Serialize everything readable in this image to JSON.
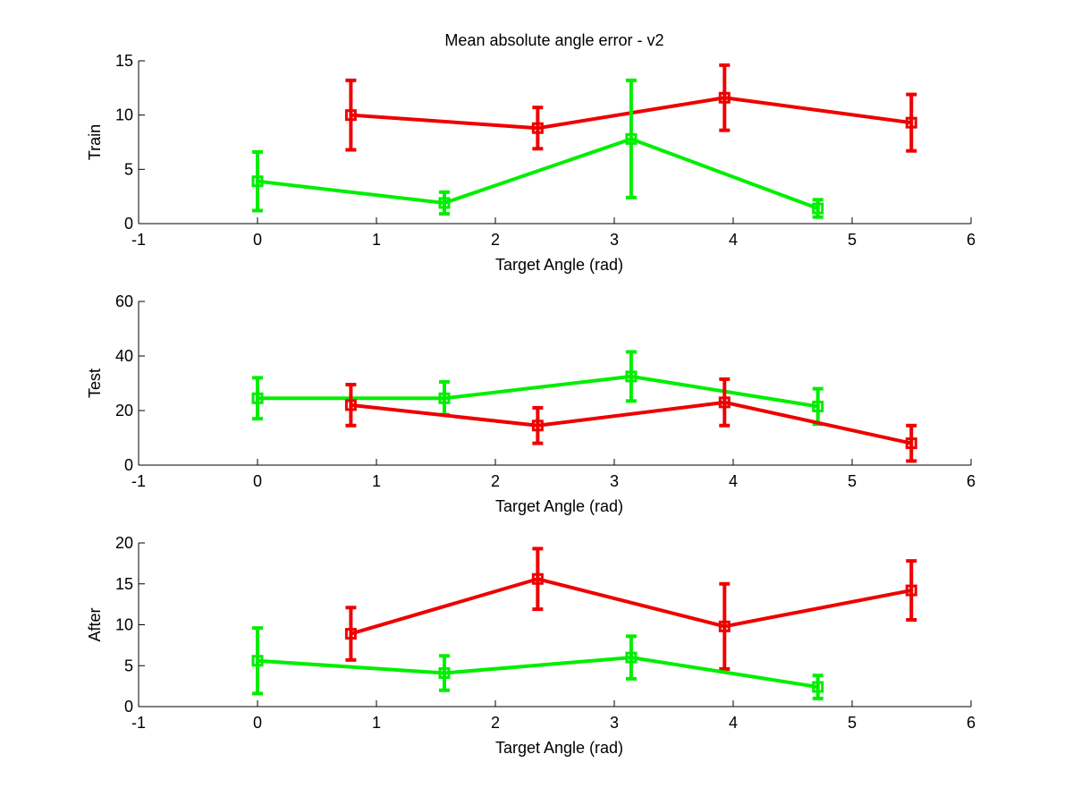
{
  "figure": {
    "title": "Mean absolute angle error - v2"
  },
  "colors": {
    "series_red": "#ee0000",
    "series_green": "#00ee00",
    "axis": "#000000",
    "background": "#ffffff"
  },
  "chart_data": [
    {
      "type": "line",
      "title": "Mean absolute angle error - v2",
      "xlabel": "Target Angle (rad)",
      "ylabel": "Train",
      "xlim": [
        -1,
        6
      ],
      "ylim": [
        0,
        15
      ],
      "xticks": [
        -1,
        0,
        1,
        2,
        3,
        4,
        5,
        6
      ],
      "yticks": [
        0,
        5,
        10,
        15
      ],
      "error_bars": true,
      "grid": false,
      "series": [
        {
          "color": "#ee0000",
          "marker": "square",
          "x": [
            0.785,
            2.356,
            3.927,
            5.498
          ],
          "y": [
            10.0,
            8.8,
            11.6,
            9.3
          ],
          "err": [
            3.2,
            1.9,
            3.0,
            2.6
          ]
        },
        {
          "color": "#00ee00",
          "marker": "square",
          "x": [
            0.0,
            1.571,
            3.142,
            4.712
          ],
          "y": [
            3.9,
            1.9,
            7.8,
            1.4
          ],
          "err": [
            2.7,
            1.0,
            5.4,
            0.8
          ]
        }
      ]
    },
    {
      "type": "line",
      "title": "",
      "xlabel": "Target Angle (rad)",
      "ylabel": "Test",
      "xlim": [
        -1,
        6
      ],
      "ylim": [
        0,
        60
      ],
      "xticks": [
        -1,
        0,
        1,
        2,
        3,
        4,
        5,
        6
      ],
      "yticks": [
        0,
        20,
        40,
        60
      ],
      "error_bars": true,
      "grid": false,
      "series": [
        {
          "color": "#00ee00",
          "marker": "square",
          "x": [
            0.0,
            1.571,
            3.142,
            4.712
          ],
          "y": [
            24.5,
            24.5,
            32.5,
            21.5
          ],
          "err": [
            7.5,
            6.0,
            9.0,
            6.5
          ]
        },
        {
          "color": "#ee0000",
          "marker": "square",
          "x": [
            0.785,
            2.356,
            3.927,
            5.498
          ],
          "y": [
            22.0,
            14.5,
            23.0,
            8.0
          ],
          "err": [
            7.5,
            6.5,
            8.5,
            6.5
          ]
        }
      ]
    },
    {
      "type": "line",
      "title": "",
      "xlabel": "Target Angle (rad)",
      "ylabel": "After",
      "xlim": [
        -1,
        6
      ],
      "ylim": [
        0,
        20
      ],
      "xticks": [
        -1,
        0,
        1,
        2,
        3,
        4,
        5,
        6
      ],
      "yticks": [
        0,
        5,
        10,
        15,
        20
      ],
      "error_bars": true,
      "grid": false,
      "series": [
        {
          "color": "#ee0000",
          "marker": "square",
          "x": [
            0.785,
            2.356,
            3.927,
            5.498
          ],
          "y": [
            8.9,
            15.6,
            9.8,
            14.2
          ],
          "err": [
            3.2,
            3.7,
            5.2,
            3.6
          ]
        },
        {
          "color": "#00ee00",
          "marker": "square",
          "x": [
            0.0,
            1.571,
            3.142,
            4.712
          ],
          "y": [
            5.6,
            4.1,
            6.0,
            2.4
          ],
          "err": [
            4.0,
            2.1,
            2.6,
            1.4
          ]
        }
      ]
    }
  ]
}
